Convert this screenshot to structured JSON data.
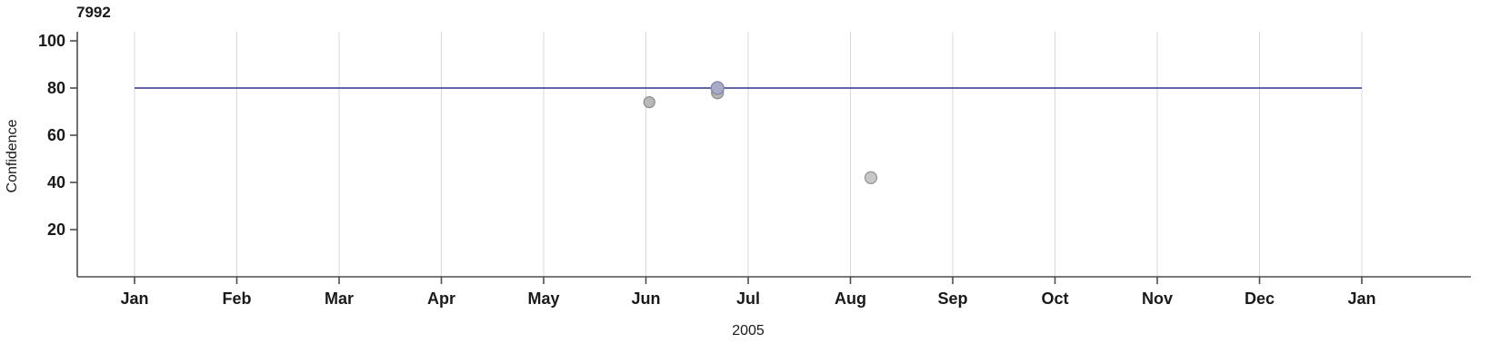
{
  "chart_data": {
    "type": "scatter",
    "title": "7992",
    "xlabel": "2005",
    "ylabel": "Confidence",
    "x_tick_labels": [
      "Jan",
      "Feb",
      "Mar",
      "Apr",
      "May",
      "Jun",
      "Jul",
      "Aug",
      "Sep",
      "Oct",
      "Nov",
      "Dec",
      "Jan"
    ],
    "y_ticks": [
      20,
      40,
      60,
      80,
      100
    ],
    "ylim": [
      0,
      104
    ],
    "x_domain": "2005-01 to 2006-01",
    "grid": "vertical month gridlines",
    "legend": "none",
    "reference_line": {
      "y": 80,
      "color": "#30308c"
    },
    "points": [
      {
        "date": "2005-06-02",
        "value": 74,
        "fill": "#b9b9b9",
        "stroke": "#8f8f8f",
        "radius": 6
      },
      {
        "date": "2005-06-22",
        "value": 78,
        "fill": "#b5b5b5",
        "stroke": "#8f8f8f",
        "radius": 6.5
      },
      {
        "date": "2005-06-22",
        "value": 80,
        "fill": "#a9abc8",
        "stroke": "#8186ad",
        "radius": 7
      },
      {
        "date": "2005-08-07",
        "value": 42,
        "fill": "#c7c7c7",
        "stroke": "#989898",
        "radius": 6.5
      }
    ],
    "style": {
      "grid_color": "#d8d8d8",
      "axis_color": "#4d4d4d",
      "tick_label_color": "#1a1a1a",
      "background": "#ffffff"
    }
  }
}
